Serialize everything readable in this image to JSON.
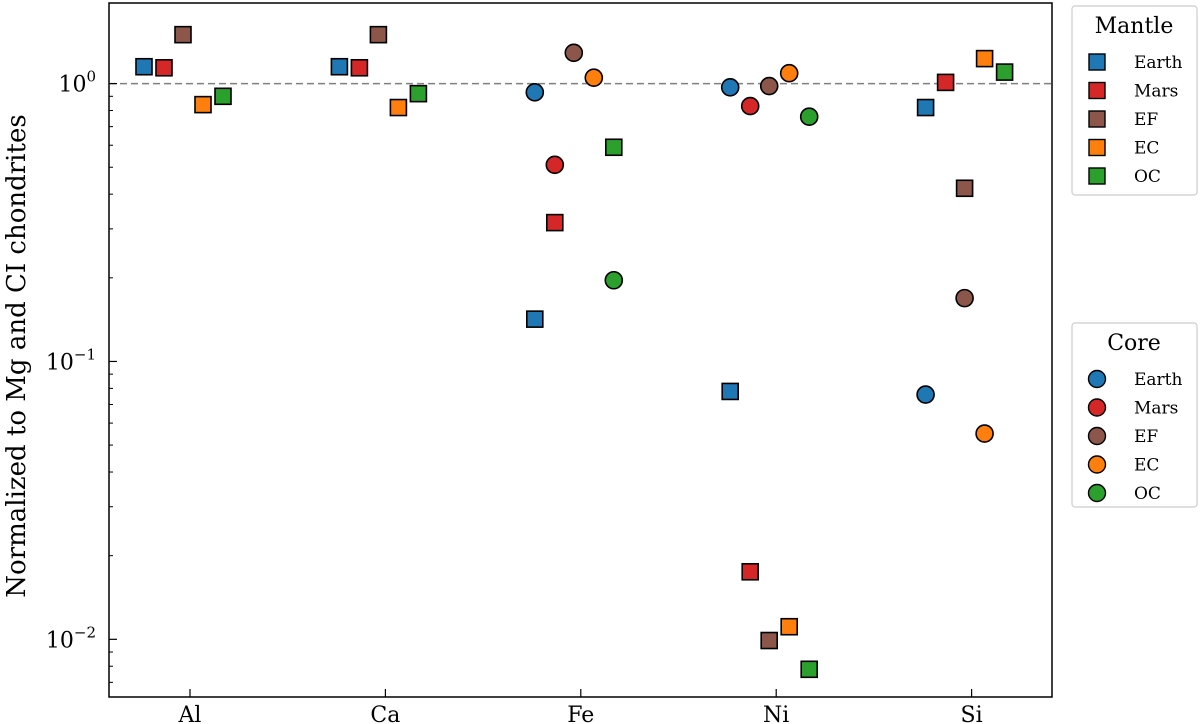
{
  "chart_data": {
    "type": "scatter",
    "ylabel": "Normalized to Mg and CI chondrites",
    "yscale": "log",
    "ylim": [
      0.0062,
      1.95
    ],
    "yticks": [
      {
        "value": 1,
        "base": "10",
        "exp": "0"
      },
      {
        "value": 0.1,
        "base": "10",
        "exp": "−1"
      },
      {
        "value": 0.01,
        "base": "10",
        "exp": "−2"
      }
    ],
    "categories": [
      "Al",
      "Ca",
      "Fe",
      "Ni",
      "Si"
    ],
    "reference_line": {
      "value": 1.0,
      "style": "dashed",
      "color": "#808080"
    },
    "planets": [
      "Earth",
      "Mars",
      "EF",
      "EC",
      "OC"
    ],
    "colors": {
      "Earth": "#1f77b4",
      "Mars": "#d62728",
      "EF": "#8c564b",
      "EC": "#ff7f0e",
      "OC": "#2ca02c"
    },
    "groups": [
      {
        "name": "Mantle",
        "marker": "square",
        "series": [
          {
            "name": "Earth",
            "values": [
              1.15,
              1.15,
              0.142,
              0.078,
              0.82
            ]
          },
          {
            "name": "Mars",
            "values": [
              1.14,
              1.14,
              0.316,
              0.0175,
              1.01
            ]
          },
          {
            "name": "EF",
            "values": [
              1.5,
              1.5,
              null,
              0.0099,
              0.42
            ]
          },
          {
            "name": "EC",
            "values": [
              0.84,
              0.82,
              null,
              0.0111,
              1.23
            ]
          },
          {
            "name": "OC",
            "values": [
              0.9,
              0.92,
              0.59,
              0.0078,
              1.1
            ]
          }
        ]
      },
      {
        "name": "Core",
        "marker": "circle",
        "series": [
          {
            "name": "Earth",
            "values": [
              null,
              null,
              0.93,
              0.97,
              0.076
            ]
          },
          {
            "name": "Mars",
            "values": [
              null,
              null,
              0.51,
              0.83,
              null
            ]
          },
          {
            "name": "EF",
            "values": [
              null,
              null,
              1.29,
              0.98,
              0.169
            ]
          },
          {
            "name": "EC",
            "values": [
              null,
              null,
              1.05,
              1.09,
              0.055
            ]
          },
          {
            "name": "OC",
            "values": [
              null,
              null,
              0.196,
              0.76,
              null
            ]
          }
        ]
      }
    ],
    "legends": [
      {
        "title": "Mantle",
        "marker": "square",
        "entries": [
          "Earth",
          "Mars",
          "EF",
          "EC",
          "OC"
        ],
        "placement": "right-top"
      },
      {
        "title": "Core",
        "marker": "circle",
        "entries": [
          "Earth",
          "Mars",
          "EF",
          "EC",
          "OC"
        ],
        "placement": "right-middle"
      }
    ]
  }
}
